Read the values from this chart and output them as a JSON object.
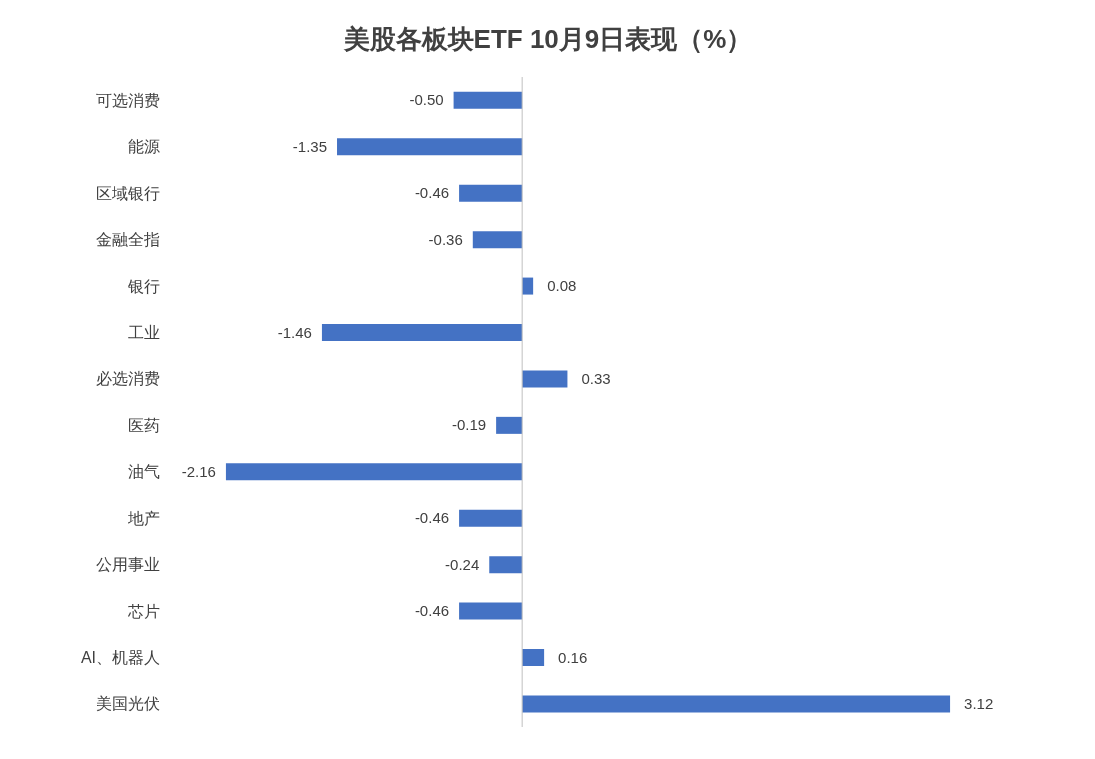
{
  "chart_data": {
    "type": "bar",
    "orientation": "horizontal",
    "title": "美股各板块ETF  10月9日表现（%）",
    "categories": [
      "可选消费",
      "能源",
      "区域银行",
      "金融全指",
      "银行",
      "工业",
      "必选消费",
      "医药",
      "油气",
      "地产",
      "公用事业",
      "芯片",
      "AI、机器人",
      "美国光伏"
    ],
    "values": [
      -0.5,
      -1.35,
      -0.46,
      -0.36,
      0.08,
      -1.46,
      0.33,
      -0.19,
      -2.16,
      -0.46,
      -0.24,
      -0.46,
      0.16,
      3.12
    ],
    "value_labels": [
      "-0.50",
      "-1.35",
      "-0.46",
      "-0.36",
      "0.08",
      "-1.46",
      "0.33",
      "-0.19",
      "-2.16",
      "-0.46",
      "-0.24",
      "-0.46",
      "0.16",
      "3.12"
    ],
    "color": "#4472c4"
  }
}
